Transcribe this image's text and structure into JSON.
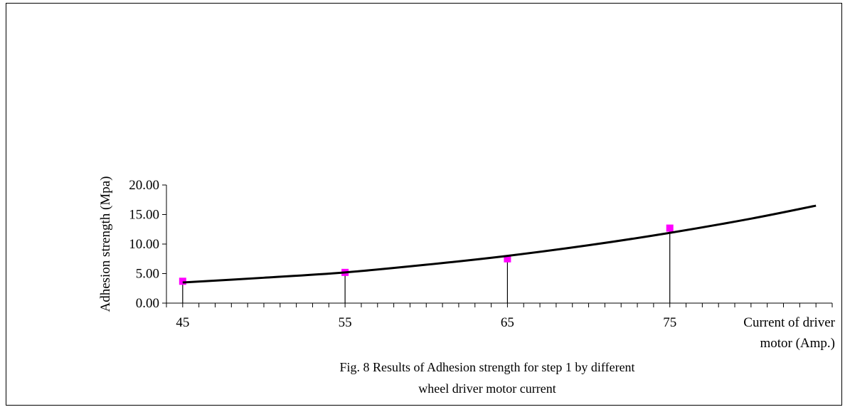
{
  "chart_data": {
    "type": "scatter",
    "title": "",
    "xlabel_lines": [
      "Current of  driver",
      "motor (Amp.)"
    ],
    "ylabel": "Adhesion strength (Mpa)",
    "x_ticks": [
      "45",
      "55",
      "65",
      "75"
    ],
    "y_ticks": [
      "0.00",
      "5.00",
      "10.00",
      "15.00",
      "20.00"
    ],
    "xlim": [
      44,
      85
    ],
    "ylim": [
      0,
      20
    ],
    "grid": false,
    "series": [
      {
        "kind": "points",
        "marker_color": "#ff00ff",
        "drop_lines": true,
        "x": [
          45,
          55,
          65,
          75
        ],
        "y": [
          3.7,
          5.2,
          7.5,
          12.7
        ]
      },
      {
        "kind": "trendline",
        "line_color": "#000000",
        "x": [
          45,
          50,
          55,
          60,
          65,
          70,
          75,
          80,
          84
        ],
        "y": [
          3.5,
          4.3,
          5.2,
          6.5,
          8.0,
          9.8,
          11.9,
          14.3,
          16.5
        ]
      }
    ],
    "caption_lines": [
      "Fig. 8 Results of Adhesion strength for step 1 by different",
      "wheel driver motor  current"
    ]
  }
}
